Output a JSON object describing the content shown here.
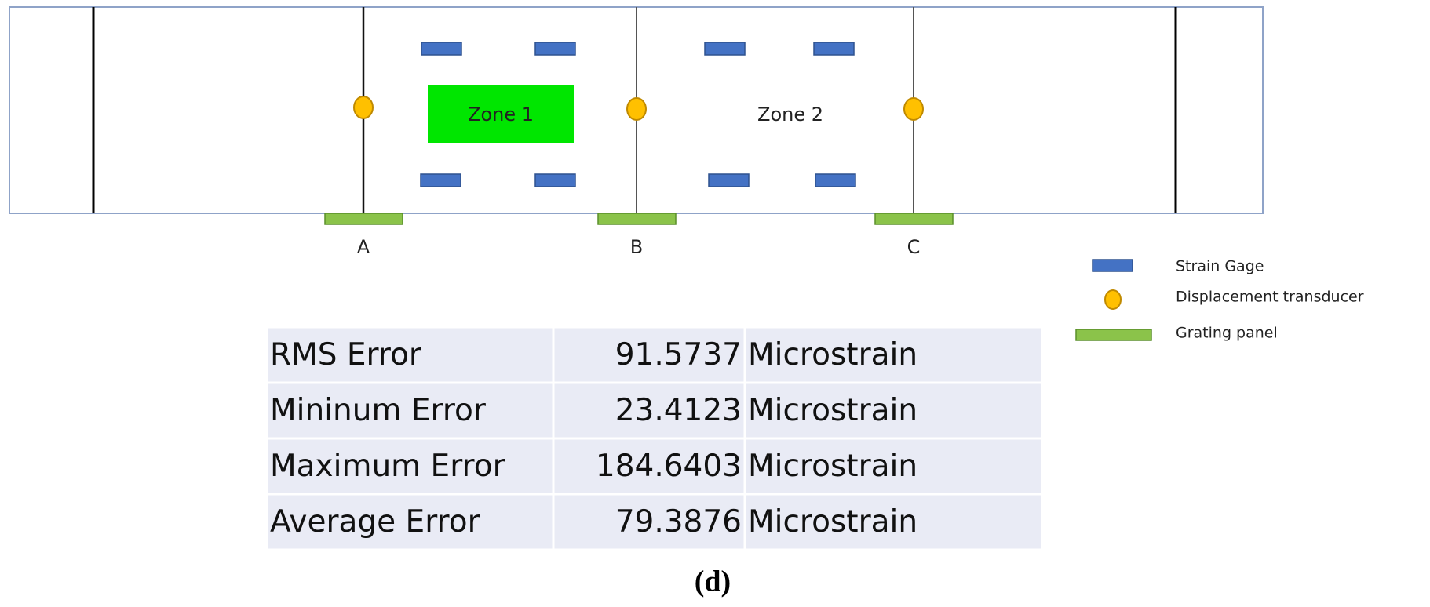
{
  "diagram": {
    "zones": [
      "Zone 1",
      "Zone 2"
    ],
    "supports": [
      "A",
      "B",
      "C"
    ],
    "legend": [
      "Strain Gage",
      "Displacement transducer",
      "Grating panel"
    ]
  },
  "table": {
    "rows": [
      [
        "RMS Error",
        91.5737,
        "Microstrain"
      ],
      [
        "Mininum Error",
        23.4123,
        "Microstrain"
      ],
      [
        "Maximum Error",
        184.6403,
        "Microstrain"
      ],
      [
        "Average Error",
        79.3876,
        "Microstrain"
      ]
    ]
  },
  "caption": "(d)"
}
